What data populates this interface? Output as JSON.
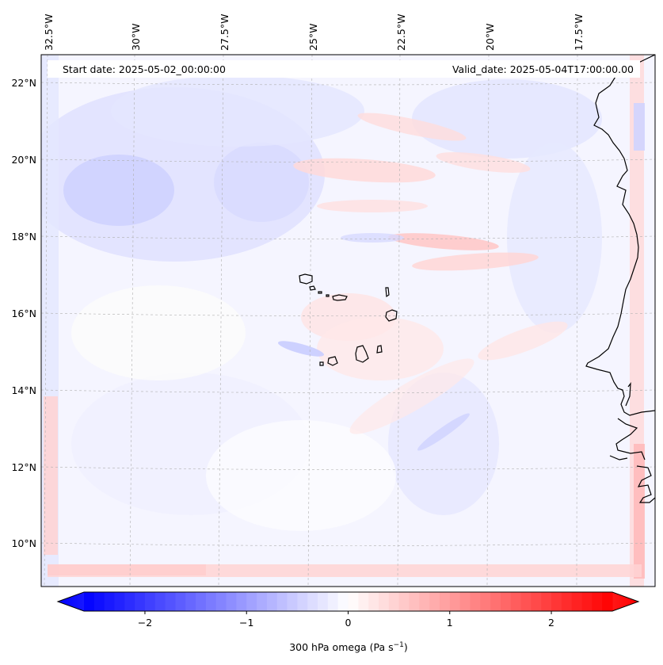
{
  "header": {
    "start_label": "Start date: 2025-05-02_00:00:00",
    "valid_label": "Valid_date: 2025-05-04T17:00:00.00"
  },
  "lon_labels": [
    "32.5°W",
    "30°W",
    "27.5°W",
    "25°W",
    "22.5°W",
    "20°W",
    "17.5°W"
  ],
  "lat_labels": [
    "22°N",
    "20°N",
    "18°N",
    "16°N",
    "14°N",
    "12°N",
    "10°N"
  ],
  "colorbar": {
    "label_prefix": "300 hPa omega (Pa s",
    "label_sup": "−1",
    "label_suffix": ")",
    "ticks": [
      "−2",
      "−1",
      "0",
      "1",
      "2"
    ],
    "tick_values": [
      -2,
      -1,
      0,
      1,
      2
    ],
    "vmin": -2.6,
    "vmax": 2.6,
    "cmap": "bwr",
    "color_low": "#0000ff",
    "color_mid": "#ffffff",
    "color_high": "#ff0000"
  },
  "map": {
    "variable": "300 hPa omega",
    "extent_lon": [
      -33,
      -15.5
    ],
    "extent_lat": [
      9,
      22.5
    ],
    "coastline_color": "#000000",
    "gridline_style": "dashed-gray"
  }
}
